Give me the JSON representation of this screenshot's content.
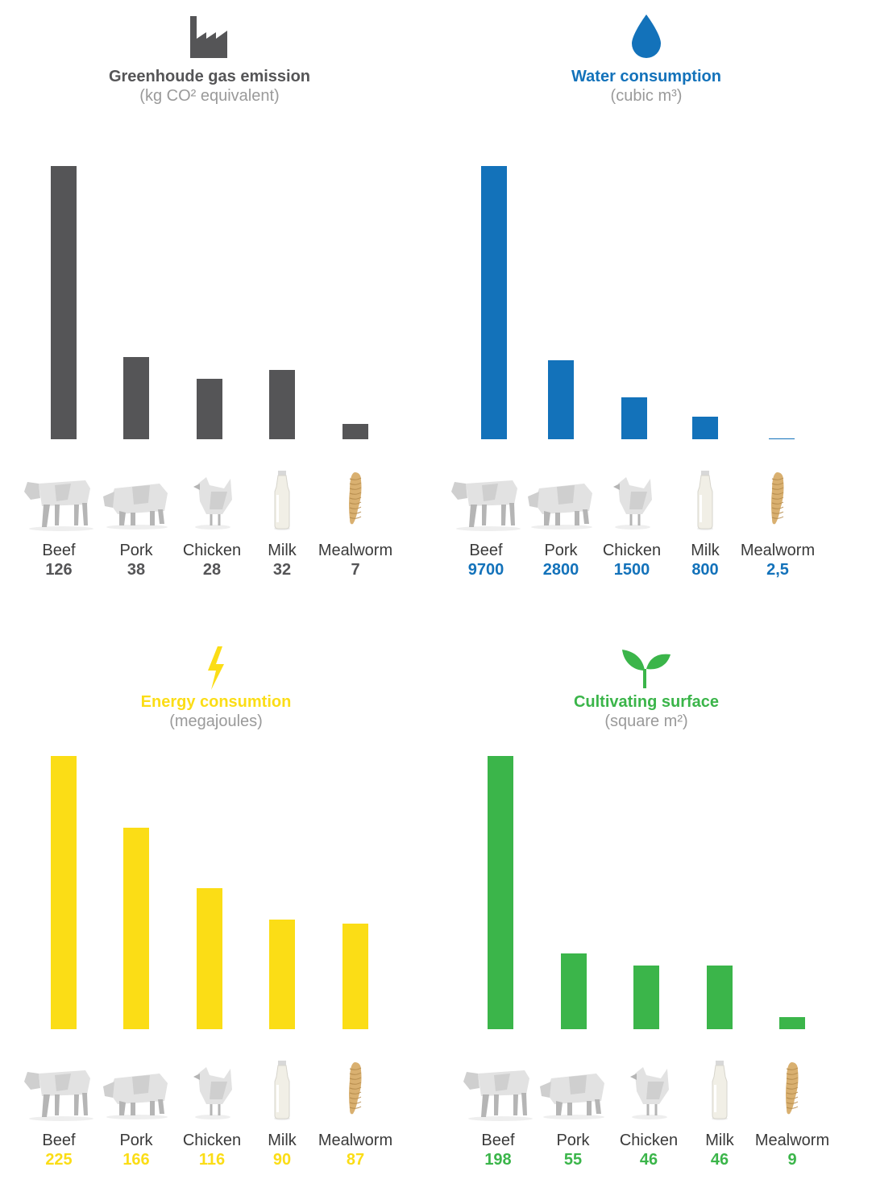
{
  "chart_data": [
    {
      "type": "bar",
      "title": "Greenhoude gas emission",
      "subtitle": "(kg CO² equivalent)",
      "icon": "factory-icon",
      "color": "#555557",
      "categories": [
        "Beef",
        "Pork",
        "Chicken",
        "Milk",
        "Mealworm"
      ],
      "values": [
        126,
        38,
        28,
        32,
        7
      ],
      "value_labels": [
        "126",
        "38",
        "28",
        "32",
        "7"
      ],
      "ylim": [
        0,
        126
      ],
      "grid": false
    },
    {
      "type": "bar",
      "title": "Water consumption",
      "subtitle": "(cubic m³)",
      "icon": "water-drop-icon",
      "color": "#1372ba",
      "categories": [
        "Beef",
        "Pork",
        "Chicken",
        "Milk",
        "Mealworm"
      ],
      "values": [
        9700,
        2800,
        1500,
        800,
        2.5
      ],
      "value_labels": [
        "9700",
        "2800",
        "1500",
        "800",
        "2,5"
      ],
      "ylim": [
        0,
        9700
      ],
      "grid": false
    },
    {
      "type": "bar",
      "title": "Energy consumtion",
      "subtitle": "(megajoules)",
      "icon": "lightning-bolt-icon",
      "color": "#fbdd16",
      "categories": [
        "Beef",
        "Pork",
        "Chicken",
        "Milk",
        "Mealworm"
      ],
      "values": [
        225,
        166,
        116,
        90,
        87
      ],
      "value_labels": [
        "225",
        "166",
        "116",
        "90",
        "87"
      ],
      "ylim": [
        0,
        225
      ],
      "grid": false
    },
    {
      "type": "bar",
      "title": "Cultivating surface",
      "subtitle": "(square m²)",
      "icon": "sprout-icon",
      "color": "#3bb54a",
      "categories": [
        "Beef",
        "Pork",
        "Chicken",
        "Milk",
        "Mealworm"
      ],
      "values": [
        198,
        55,
        46,
        46,
        9
      ],
      "value_labels": [
        "198",
        "55",
        "46",
        "46",
        "9"
      ],
      "ylim": [
        0,
        198
      ],
      "grid": false
    }
  ],
  "thumbnails": [
    "cow-icon",
    "pig-icon",
    "chicken-icon",
    "milk-bottle-icon",
    "mealworm-icon"
  ]
}
